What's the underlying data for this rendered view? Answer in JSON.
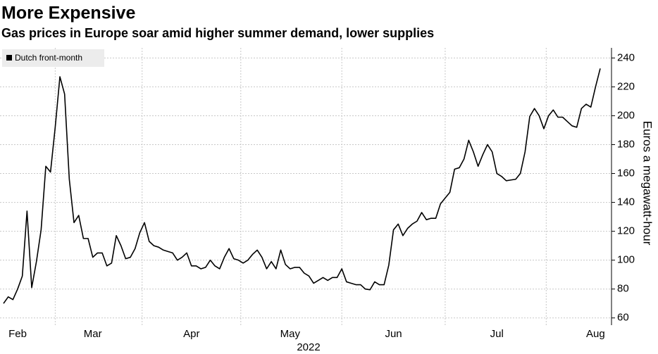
{
  "chart_data": {
    "type": "line",
    "title": "More Expensive",
    "subtitle": "Gas prices in Europe soar amid higher summer demand, lower supplies",
    "ylabel": "Euros a megawatt-hour",
    "xlabel": "2022",
    "categories": [
      null,
      null,
      null,
      "Feb",
      null,
      null,
      null,
      null,
      null,
      null,
      null,
      null,
      null,
      null,
      null,
      null,
      null,
      null,
      null,
      "Mar",
      null,
      null,
      null,
      null,
      null,
      null,
      null,
      null,
      null,
      null,
      null,
      null,
      null,
      null,
      null,
      null,
      null,
      null,
      null,
      null,
      "Apr",
      null,
      null,
      null,
      null,
      null,
      null,
      null,
      null,
      null,
      null,
      null,
      null,
      null,
      null,
      null,
      null,
      null,
      null,
      null,
      null,
      "May",
      null,
      null,
      null,
      null,
      null,
      null,
      null,
      null,
      null,
      null,
      null,
      null,
      null,
      null,
      null,
      null,
      null,
      null,
      null,
      null,
      null,
      "Jun",
      null,
      null,
      null,
      null,
      null,
      null,
      null,
      null,
      null,
      null,
      null,
      null,
      null,
      null,
      null,
      null,
      null,
      null,
      null,
      null,
      null,
      "Jul",
      null,
      null,
      null,
      null,
      null,
      null,
      null,
      null,
      null,
      null,
      null,
      null,
      null,
      null,
      null,
      null,
      null,
      null,
      null,
      null,
      "Aug",
      null
    ],
    "series": [
      {
        "name": "Dutch front-month",
        "color": "#000000",
        "values": [
          70,
          74.6,
          72.7,
          80,
          89,
          134,
          81,
          99,
          121,
          165,
          161,
          192,
          227,
          215,
          156,
          126,
          131,
          115,
          115,
          102,
          105,
          105,
          96,
          98,
          117,
          110,
          101,
          102,
          108,
          119,
          126,
          113,
          110,
          109,
          107,
          106,
          105,
          100,
          102,
          105,
          96,
          96,
          94,
          95,
          100,
          96,
          94,
          102,
          108,
          101,
          100,
          98,
          100,
          104,
          107,
          102,
          94,
          99,
          94,
          107,
          97,
          94,
          95,
          95,
          91,
          89,
          84,
          86,
          88,
          86,
          88,
          88,
          94,
          85,
          84,
          83,
          83,
          80,
          79.5,
          85,
          83,
          83,
          96.6,
          121,
          125,
          117,
          122,
          125,
          127,
          133,
          128,
          129,
          129,
          139,
          143,
          147,
          163,
          164,
          170,
          183,
          175,
          165,
          173,
          180,
          175,
          160,
          158,
          155,
          155.5,
          156,
          160,
          175,
          199.5,
          205,
          200,
          191,
          200,
          204,
          199,
          199,
          196,
          193,
          192,
          205,
          208,
          206,
          220,
          232.7
        ]
      }
    ],
    "ylim": [
      55,
      247
    ],
    "yticks": [
      60,
      80,
      100,
      120,
      140,
      160,
      180,
      200,
      220,
      240
    ],
    "grid": true,
    "legend": "top-left"
  }
}
